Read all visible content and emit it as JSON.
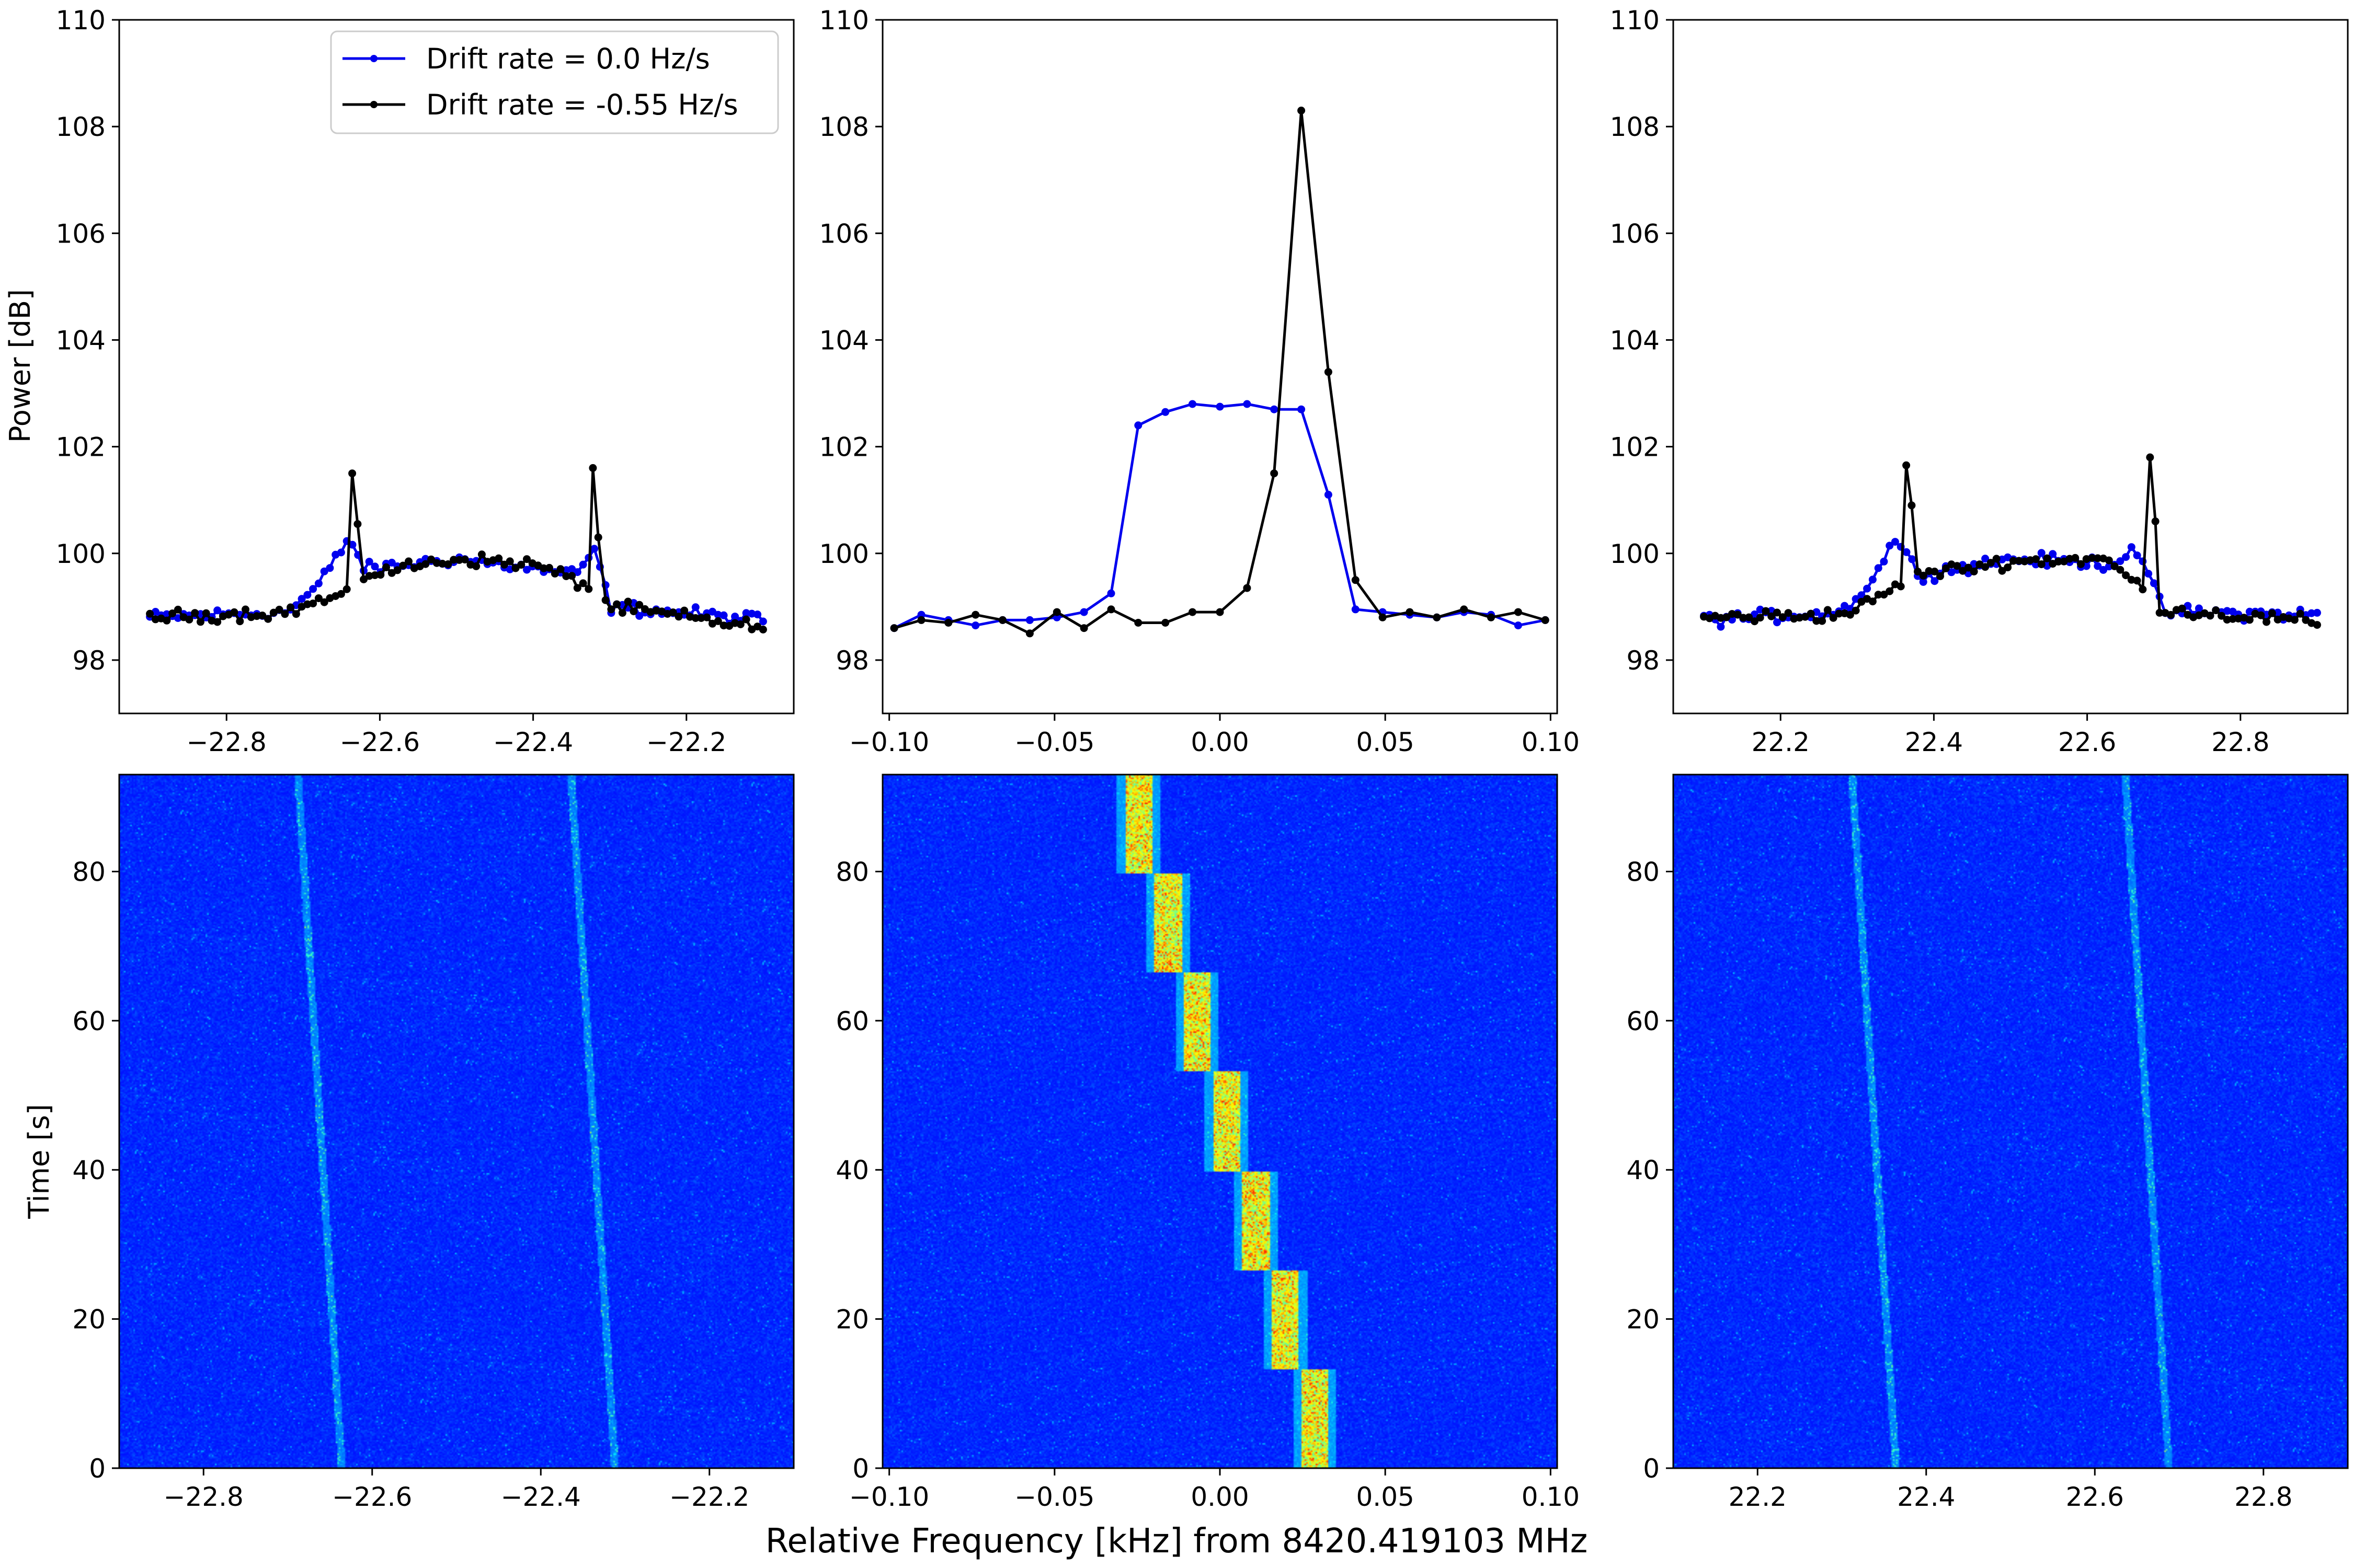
{
  "chart_data": {
    "figure": {
      "xlabel": "Relative Frequency [kHz] from 8420.419103 MHz",
      "legend": {
        "placement": "top-right of top-left panel",
        "entries": [
          {
            "label": "Drift rate = 0.0 Hz/s",
            "color": "#0000ee"
          },
          {
            "label": "Drift rate = -0.55 Hz/s",
            "color": "#000000"
          }
        ]
      }
    },
    "line_panels": [
      {
        "type": "line",
        "name": "left",
        "ylabel": "Power [dB]",
        "ylim": [
          97,
          110
        ],
        "yticks": [
          98,
          100,
          102,
          104,
          106,
          108,
          110
        ],
        "xlim": [
          -22.94,
          -22.06
        ],
        "xticks": [
          -22.8,
          -22.6,
          -22.4,
          -22.2
        ],
        "xticklabels": [
          "−22.8",
          "−22.6",
          "−22.4",
          "−22.2"
        ],
        "series": [
          {
            "name": "Drift rate = 0.0 Hz/s",
            "color": "#0000ee",
            "x_range": [
              -22.9,
              -22.1
            ],
            "anchors": [
              [
                -22.9,
                98.8
              ],
              [
                -22.72,
                98.9
              ],
              [
                -22.68,
                99.4
              ],
              [
                -22.64,
                100.3
              ],
              [
                -22.62,
                99.7
              ],
              [
                -22.5,
                99.9
              ],
              [
                -22.34,
                99.6
              ],
              [
                -22.32,
                100.1
              ],
              [
                -22.3,
                99.0
              ],
              [
                -22.1,
                98.75
              ]
            ],
            "spikes": []
          },
          {
            "name": "Drift rate = -0.55 Hz/s",
            "color": "#000000",
            "x_range": [
              -22.9,
              -22.1
            ],
            "anchors": [
              [
                -22.9,
                98.8
              ],
              [
                -22.72,
                98.9
              ],
              [
                -22.68,
                99.1
              ],
              [
                -22.65,
                99.2
              ],
              [
                -22.62,
                99.6
              ],
              [
                -22.5,
                99.9
              ],
              [
                -22.4,
                99.8
              ],
              [
                -22.33,
                99.4
              ],
              [
                -22.3,
                99.0
              ],
              [
                -22.1,
                98.6
              ]
            ],
            "spikes": [
              [
                -22.636,
                101.5
              ],
              [
                -22.629,
                100.55
              ],
              [
                -22.322,
                101.6
              ],
              [
                -22.315,
                100.3
              ]
            ]
          }
        ]
      },
      {
        "type": "line",
        "name": "center",
        "ylabel": "",
        "ylim": [
          97,
          110
        ],
        "yticks": [
          98,
          100,
          102,
          104,
          106,
          108,
          110
        ],
        "xlim": [
          -0.102,
          0.102
        ],
        "xticks": [
          -0.1,
          -0.05,
          0.0,
          0.05,
          0.1
        ],
        "xticklabels": [
          "−0.10",
          "−0.05",
          "0.00",
          "0.05",
          "0.10"
        ],
        "series": [
          {
            "name": "Drift rate = 0.0 Hz/s",
            "color": "#0000ee",
            "x": [
              -0.0985,
              -0.0903,
              -0.0821,
              -0.0739,
              -0.0657,
              -0.0575,
              -0.0493,
              -0.0411,
              -0.0329,
              -0.0247,
              -0.0165,
              -0.0083,
              0.0,
              0.0082,
              0.0164,
              0.0246,
              0.0328,
              0.041,
              0.0492,
              0.0574,
              0.0656,
              0.0738,
              0.082,
              0.0902,
              0.0984
            ],
            "y": [
              98.6,
              98.85,
              98.75,
              98.65,
              98.75,
              98.75,
              98.8,
              98.9,
              99.25,
              102.4,
              102.65,
              102.8,
              102.75,
              102.8,
              102.7,
              102.7,
              101.1,
              98.95,
              98.9,
              98.85,
              98.8,
              98.9,
              98.85,
              98.65,
              98.75
            ]
          },
          {
            "name": "Drift rate = -0.55 Hz/s",
            "color": "#000000",
            "x": [
              -0.0985,
              -0.0903,
              -0.0821,
              -0.0739,
              -0.0657,
              -0.0575,
              -0.0493,
              -0.0411,
              -0.0329,
              -0.0247,
              -0.0165,
              -0.0083,
              0.0,
              0.0082,
              0.0164,
              0.0246,
              0.0328,
              0.041,
              0.0492,
              0.0574,
              0.0656,
              0.0738,
              0.082,
              0.0902,
              0.0984
            ],
            "y": [
              98.6,
              98.75,
              98.7,
              98.85,
              98.75,
              98.5,
              98.9,
              98.6,
              98.95,
              98.7,
              98.7,
              98.9,
              98.9,
              99.35,
              101.5,
              108.3,
              103.4,
              99.5,
              98.8,
              98.9,
              98.8,
              98.95,
              98.8,
              98.9,
              98.75
            ]
          }
        ]
      },
      {
        "type": "line",
        "name": "right",
        "ylabel": "",
        "ylim": [
          97,
          110
        ],
        "yticks": [
          98,
          100,
          102,
          104,
          106,
          108,
          110
        ],
        "xlim": [
          22.06,
          22.94
        ],
        "xticks": [
          22.2,
          22.4,
          22.6,
          22.8
        ],
        "xticklabels": [
          "22.2",
          "22.4",
          "22.6",
          "22.8"
        ],
        "series": [
          {
            "name": "Drift rate = 0.0 Hz/s",
            "color": "#0000ee",
            "x_range": [
              22.1,
              22.9
            ],
            "anchors": [
              [
                22.1,
                98.75
              ],
              [
                22.28,
                98.9
              ],
              [
                22.32,
                99.5
              ],
              [
                22.35,
                100.3
              ],
              [
                22.38,
                99.6
              ],
              [
                22.5,
                99.9
              ],
              [
                22.64,
                99.8
              ],
              [
                22.66,
                100.2
              ],
              [
                22.7,
                98.9
              ],
              [
                22.9,
                98.85
              ]
            ],
            "spikes": []
          },
          {
            "name": "Drift rate = -0.55 Hz/s",
            "color": "#000000",
            "x_range": [
              22.1,
              22.9
            ],
            "anchors": [
              [
                22.1,
                98.8
              ],
              [
                22.28,
                98.85
              ],
              [
                22.32,
                99.1
              ],
              [
                22.34,
                99.3
              ],
              [
                22.38,
                99.6
              ],
              [
                22.5,
                99.85
              ],
              [
                22.62,
                99.9
              ],
              [
                22.67,
                99.4
              ],
              [
                22.7,
                98.95
              ],
              [
                22.9,
                98.7
              ]
            ],
            "spikes": [
              [
                22.364,
                101.65
              ],
              [
                22.371,
                100.9
              ],
              [
                22.682,
                101.8
              ],
              [
                22.689,
                100.6
              ]
            ]
          }
        ]
      }
    ],
    "heatmap_panels": [
      {
        "type": "heatmap",
        "name": "left",
        "colormap": "jet",
        "ylabel": "Time [s]",
        "ylim": [
          0,
          93
        ],
        "yticks": [
          0,
          20,
          40,
          60,
          80
        ],
        "xlim": [
          -22.9,
          -22.1
        ],
        "xticks": [
          -22.8,
          -22.6,
          -22.4,
          -22.2
        ],
        "xticklabels": [
          "−22.8",
          "−22.6",
          "−22.4",
          "−22.2"
        ],
        "signal_tracks": [
          {
            "freq_at_t0": -22.636,
            "freq_at_t93": -22.688
          },
          {
            "freq_at_t0": -22.312,
            "freq_at_t93": -22.364
          }
        ]
      },
      {
        "type": "heatmap",
        "name": "center",
        "colormap": "jet",
        "ylabel": "",
        "ylim": [
          0,
          93
        ],
        "yticks": [
          0,
          20,
          40,
          60,
          80
        ],
        "xlim": [
          -0.102,
          0.102
        ],
        "xticks": [
          -0.1,
          -0.05,
          0.0,
          0.05,
          0.1
        ],
        "xticklabels": [
          "−0.10",
          "−0.05",
          "0.00",
          "0.05",
          "0.10"
        ],
        "drifting_signal": {
          "freq_at_t0": 0.0287,
          "freq_at_t93": -0.0246,
          "step_width_khz": 0.0082,
          "peak_level": 0.92
        }
      },
      {
        "type": "heatmap",
        "name": "right",
        "colormap": "jet",
        "ylabel": "",
        "ylim": [
          0,
          93
        ],
        "yticks": [
          0,
          20,
          40,
          60,
          80
        ],
        "xlim": [
          22.1,
          22.9
        ],
        "xticks": [
          22.2,
          22.4,
          22.6,
          22.8
        ],
        "xticklabels": [
          "22.2",
          "22.4",
          "22.6",
          "22.8"
        ],
        "signal_tracks": [
          {
            "freq_at_t0": 22.364,
            "freq_at_t93": 22.312
          },
          {
            "freq_at_t0": 22.688,
            "freq_at_t93": 22.636
          }
        ]
      }
    ]
  }
}
